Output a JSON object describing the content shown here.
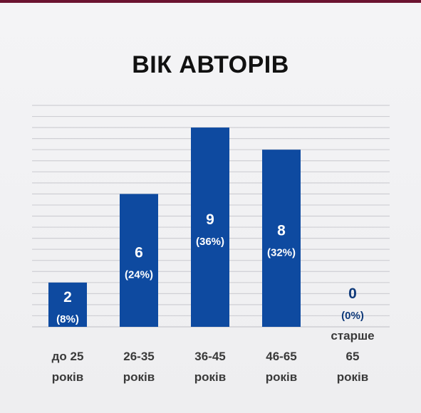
{
  "colors": {
    "bar": "#0e4aa0",
    "bar_label": "#ffffff",
    "zero_label": "#0f3a7a",
    "grid": "#cfcfd4",
    "axis_text": "#3a3a3a",
    "title": "#111111"
  },
  "chart_data": {
    "type": "bar",
    "title": "ВІК АВТОРІВ",
    "xlabel": "",
    "ylabel": "",
    "ylim": [
      0,
      10
    ],
    "grid": true,
    "categories": [
      [
        "до 25",
        "років"
      ],
      [
        "26-35",
        "років"
      ],
      [
        "36-45",
        "років"
      ],
      [
        "46-65",
        "років"
      ],
      [
        "старше",
        "65",
        "років"
      ]
    ],
    "values": [
      2,
      6,
      9,
      8,
      0
    ],
    "value_labels": [
      "2",
      "6",
      "9",
      "8",
      "0"
    ],
    "percent_labels": [
      "(8%)",
      "(24%)",
      "(36%)",
      "(32%)",
      "(0%)"
    ]
  }
}
